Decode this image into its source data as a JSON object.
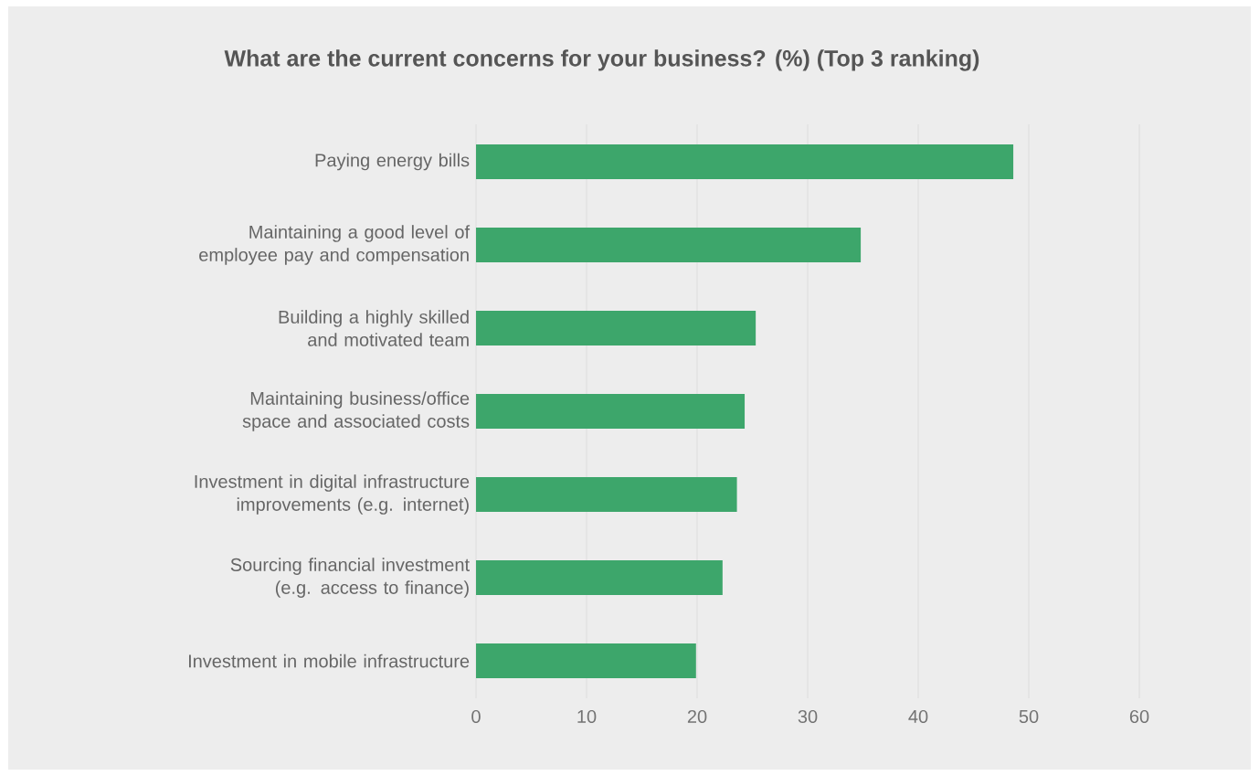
{
  "chart_data": {
    "type": "bar",
    "orientation": "horizontal",
    "title": "What are the current concerns for your business? (%) (Top 3 ranking)",
    "categories": [
      "Paying energy bills",
      "Maintaining a good level of employee pay and compensation",
      "Building a highly skilled and motivated team",
      "Maintaining business/office space and associated costs",
      "Investment in digital infrastructure improvements (e.g. internet)",
      "Sourcing financial investment (e.g. access to finance)",
      "Investment in mobile infrastructure"
    ],
    "values": [
      48.6,
      34.8,
      25.3,
      24.3,
      23.6,
      22.3,
      19.9
    ],
    "color": "#3da66b",
    "xlim": [
      0,
      60
    ],
    "xticks": [
      0,
      10,
      20,
      30,
      40,
      50,
      60
    ],
    "grid": "x"
  }
}
